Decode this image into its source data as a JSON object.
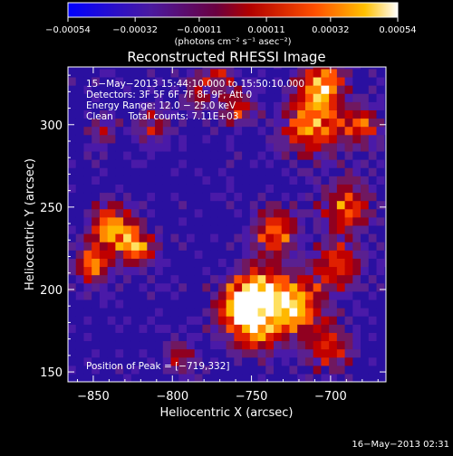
{
  "chart_data": {
    "type": "heatmap",
    "title": "Reconstructed RHESSI Image",
    "xlabel": "Heliocentric X (arcsec)",
    "ylabel": "Heliocentric Y (arcsec)",
    "x_ticks": [
      "−850",
      "−800",
      "−750",
      "−700"
    ],
    "x_tick_values": [
      -850,
      -800,
      -750,
      -700
    ],
    "y_ticks": [
      "150",
      "200",
      "250",
      "300"
    ],
    "y_tick_values": [
      150,
      200,
      250,
      300
    ],
    "xlim": [
      -866,
      -665
    ],
    "ylim": [
      144,
      335
    ],
    "grid": false,
    "colorbar": {
      "tick_labels": [
        "−0.00054",
        "−0.00032",
        "−0.00011",
        "0.00011",
        "0.00032",
        "0.00054"
      ],
      "range": [
        -0.00054,
        0.00054
      ],
      "units": "(photons cm⁻² s⁻¹ asec⁻²)",
      "colors": [
        "#0000ff",
        "#6020a0",
        "#a00000",
        "#ff4000",
        "#ffb000",
        "#ffffff"
      ]
    },
    "info_lines": [
      "15−May−2013 15:44:10.000 to 15:50:10.000",
      "Detectors: 3F 5F 6F 7F 8F 9F; Att 0",
      "Energy Range: 12.0 − 25.0 keV",
      "Clean     Total counts: 7.11E+03"
    ],
    "peak_text": "Position of Peak = [−719,332]",
    "peak_position": [
      -719,
      332
    ]
  },
  "footer": {
    "timestamp": "16−May−2013 02:31"
  }
}
